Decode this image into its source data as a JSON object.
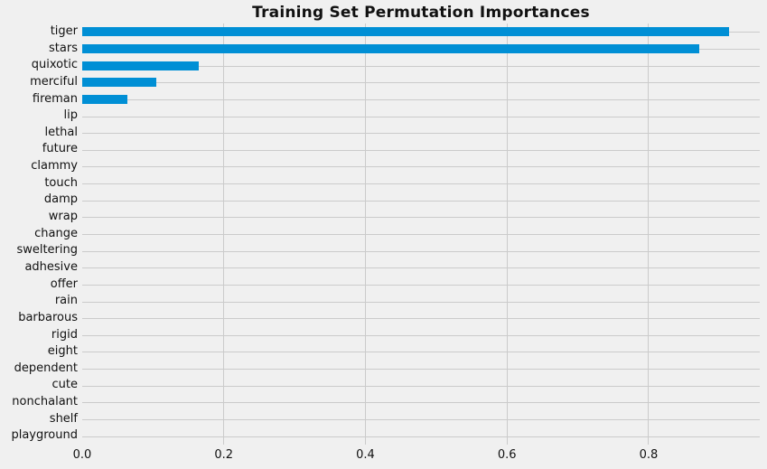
{
  "title": "Training Set Permutation Importances",
  "colors": {
    "background": "#f0f0f0",
    "gridline": "#cbcbcb",
    "bar": "#008fd5",
    "text": "#111111"
  },
  "chart_data": {
    "type": "bar",
    "orientation": "horizontal",
    "title": "Training Set Permutation Importances",
    "xlabel": "",
    "ylabel": "",
    "categories": [
      "tiger",
      "stars",
      "quixotic",
      "merciful",
      "fireman",
      "lip",
      "lethal",
      "future",
      "clammy",
      "touch",
      "damp",
      "wrap",
      "change",
      "sweltering",
      "adhesive",
      "offer",
      "rain",
      "barbarous",
      "rigid",
      "eight",
      "dependent",
      "cute",
      "nonchalant",
      "shelf",
      "playground"
    ],
    "values": [
      0.913,
      0.872,
      0.164,
      0.104,
      0.064,
      0,
      0,
      0,
      0,
      0,
      0,
      0,
      0,
      0,
      0,
      0,
      0,
      0,
      0,
      0,
      0,
      0,
      0,
      0,
      0
    ],
    "xlim": [
      0,
      0.957
    ],
    "xticks": [
      0.0,
      0.2,
      0.4,
      0.6,
      0.8
    ],
    "xtick_labels": [
      "0.0",
      "0.2",
      "0.4",
      "0.6",
      "0.8"
    ],
    "grid": true,
    "legend": null,
    "bar_color": "#008fd5",
    "style": "fivethirtyeight"
  }
}
